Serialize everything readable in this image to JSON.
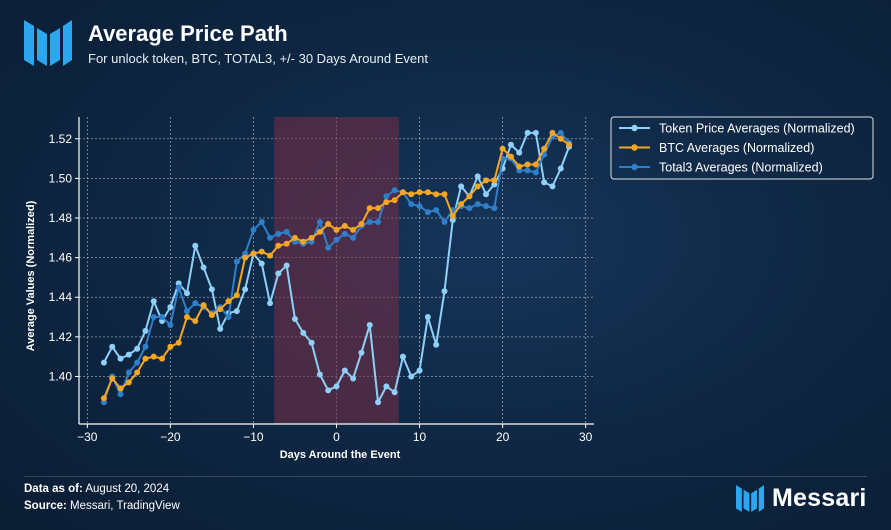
{
  "header": {
    "title": "Average Price Path",
    "subtitle": "For unlock token, BTC, TOTAL3, +/- 30 Days Around Event"
  },
  "footer": {
    "data_as_of_label": "Data as of:",
    "data_as_of_value": "August 20, 2024",
    "source_label": "Source:",
    "source_value": "Messari, TradingView",
    "brand": "Messari"
  },
  "colors": {
    "token": "#8fd0f8",
    "btc": "#f5a623",
    "total3": "#2f7fc9",
    "shade": "#7a2e45",
    "grid": "#ffffff"
  },
  "chart_data": {
    "type": "line",
    "xlabel": "Days Around the Event",
    "ylabel": "Average Values (Normalized)",
    "xlim": [
      -31,
      31
    ],
    "ylim": [
      1.376,
      1.531
    ],
    "xticks": [
      -30,
      -20,
      -10,
      0,
      10,
      20,
      30
    ],
    "xtick_labels": [
      "−30",
      "−20",
      "−10",
      "0",
      "10",
      "20",
      "30"
    ],
    "yticks": [
      1.4,
      1.42,
      1.44,
      1.46,
      1.48,
      1.5,
      1.52
    ],
    "ytick_labels": [
      "1.40",
      "1.42",
      "1.44",
      "1.46",
      "1.48",
      "1.50",
      "1.52"
    ],
    "grid": true,
    "legend_position": "outside-right",
    "shaded_region": [
      -7.5,
      7.5
    ],
    "x": [
      -28,
      -27,
      -26,
      -25,
      -24,
      -23,
      -22,
      -21,
      -20,
      -19,
      -18,
      -17,
      -16,
      -15,
      -14,
      -13,
      -12,
      -11,
      -10,
      -9,
      -8,
      -7,
      -6,
      -5,
      -4,
      -3,
      -2,
      -1,
      0,
      1,
      2,
      3,
      4,
      5,
      6,
      7,
      8,
      9,
      10,
      11,
      12,
      13,
      14,
      15,
      16,
      17,
      18,
      19,
      20,
      21,
      22,
      23,
      24,
      25,
      26,
      27,
      28
    ],
    "series": [
      {
        "name": "Token Price Averages (Normalized)",
        "color": "#8fd0f8",
        "values": [
          1.407,
          1.415,
          1.409,
          1.411,
          1.414,
          1.423,
          1.438,
          1.428,
          1.435,
          1.447,
          1.442,
          1.466,
          1.455,
          1.444,
          1.424,
          1.432,
          1.433,
          1.444,
          1.462,
          1.457,
          1.437,
          1.452,
          1.456,
          1.429,
          1.422,
          1.417,
          1.401,
          1.393,
          1.395,
          1.403,
          1.399,
          1.412,
          1.426,
          1.387,
          1.395,
          1.392,
          1.41,
          1.4,
          1.403,
          1.43,
          1.416,
          1.443,
          1.479,
          1.496,
          1.491,
          1.501,
          1.492,
          1.497,
          1.505,
          1.517,
          1.513,
          1.523,
          1.523,
          1.498,
          1.496,
          1.505,
          1.516
        ]
      },
      {
        "name": "BTC Averages (Normalized)",
        "color": "#f5a623",
        "values": [
          1.389,
          1.399,
          1.394,
          1.397,
          1.402,
          1.409,
          1.41,
          1.409,
          1.415,
          1.417,
          1.43,
          1.428,
          1.436,
          1.431,
          1.434,
          1.438,
          1.441,
          1.46,
          1.462,
          1.463,
          1.461,
          1.466,
          1.467,
          1.47,
          1.468,
          1.47,
          1.473,
          1.477,
          1.474,
          1.476,
          1.474,
          1.477,
          1.485,
          1.485,
          1.488,
          1.489,
          1.493,
          1.492,
          1.493,
          1.493,
          1.492,
          1.492,
          1.481,
          1.487,
          1.491,
          1.496,
          1.499,
          1.499,
          1.515,
          1.511,
          1.506,
          1.507,
          1.507,
          1.515,
          1.523,
          1.52,
          1.517
        ]
      },
      {
        "name": "Total3 Averages (Normalized)",
        "color": "#2f7fc9",
        "values": [
          1.387,
          1.4,
          1.391,
          1.402,
          1.407,
          1.415,
          1.43,
          1.43,
          1.426,
          1.445,
          1.433,
          1.437,
          1.435,
          1.432,
          1.435,
          1.43,
          1.458,
          1.462,
          1.474,
          1.478,
          1.47,
          1.472,
          1.473,
          1.468,
          1.467,
          1.468,
          1.478,
          1.465,
          1.469,
          1.472,
          1.47,
          1.476,
          1.478,
          1.478,
          1.491,
          1.494,
          1.493,
          1.487,
          1.486,
          1.483,
          1.484,
          1.478,
          1.484,
          1.486,
          1.485,
          1.487,
          1.486,
          1.485,
          1.51,
          1.51,
          1.504,
          1.504,
          1.503,
          1.512,
          1.521,
          1.523,
          1.518
        ]
      }
    ]
  }
}
